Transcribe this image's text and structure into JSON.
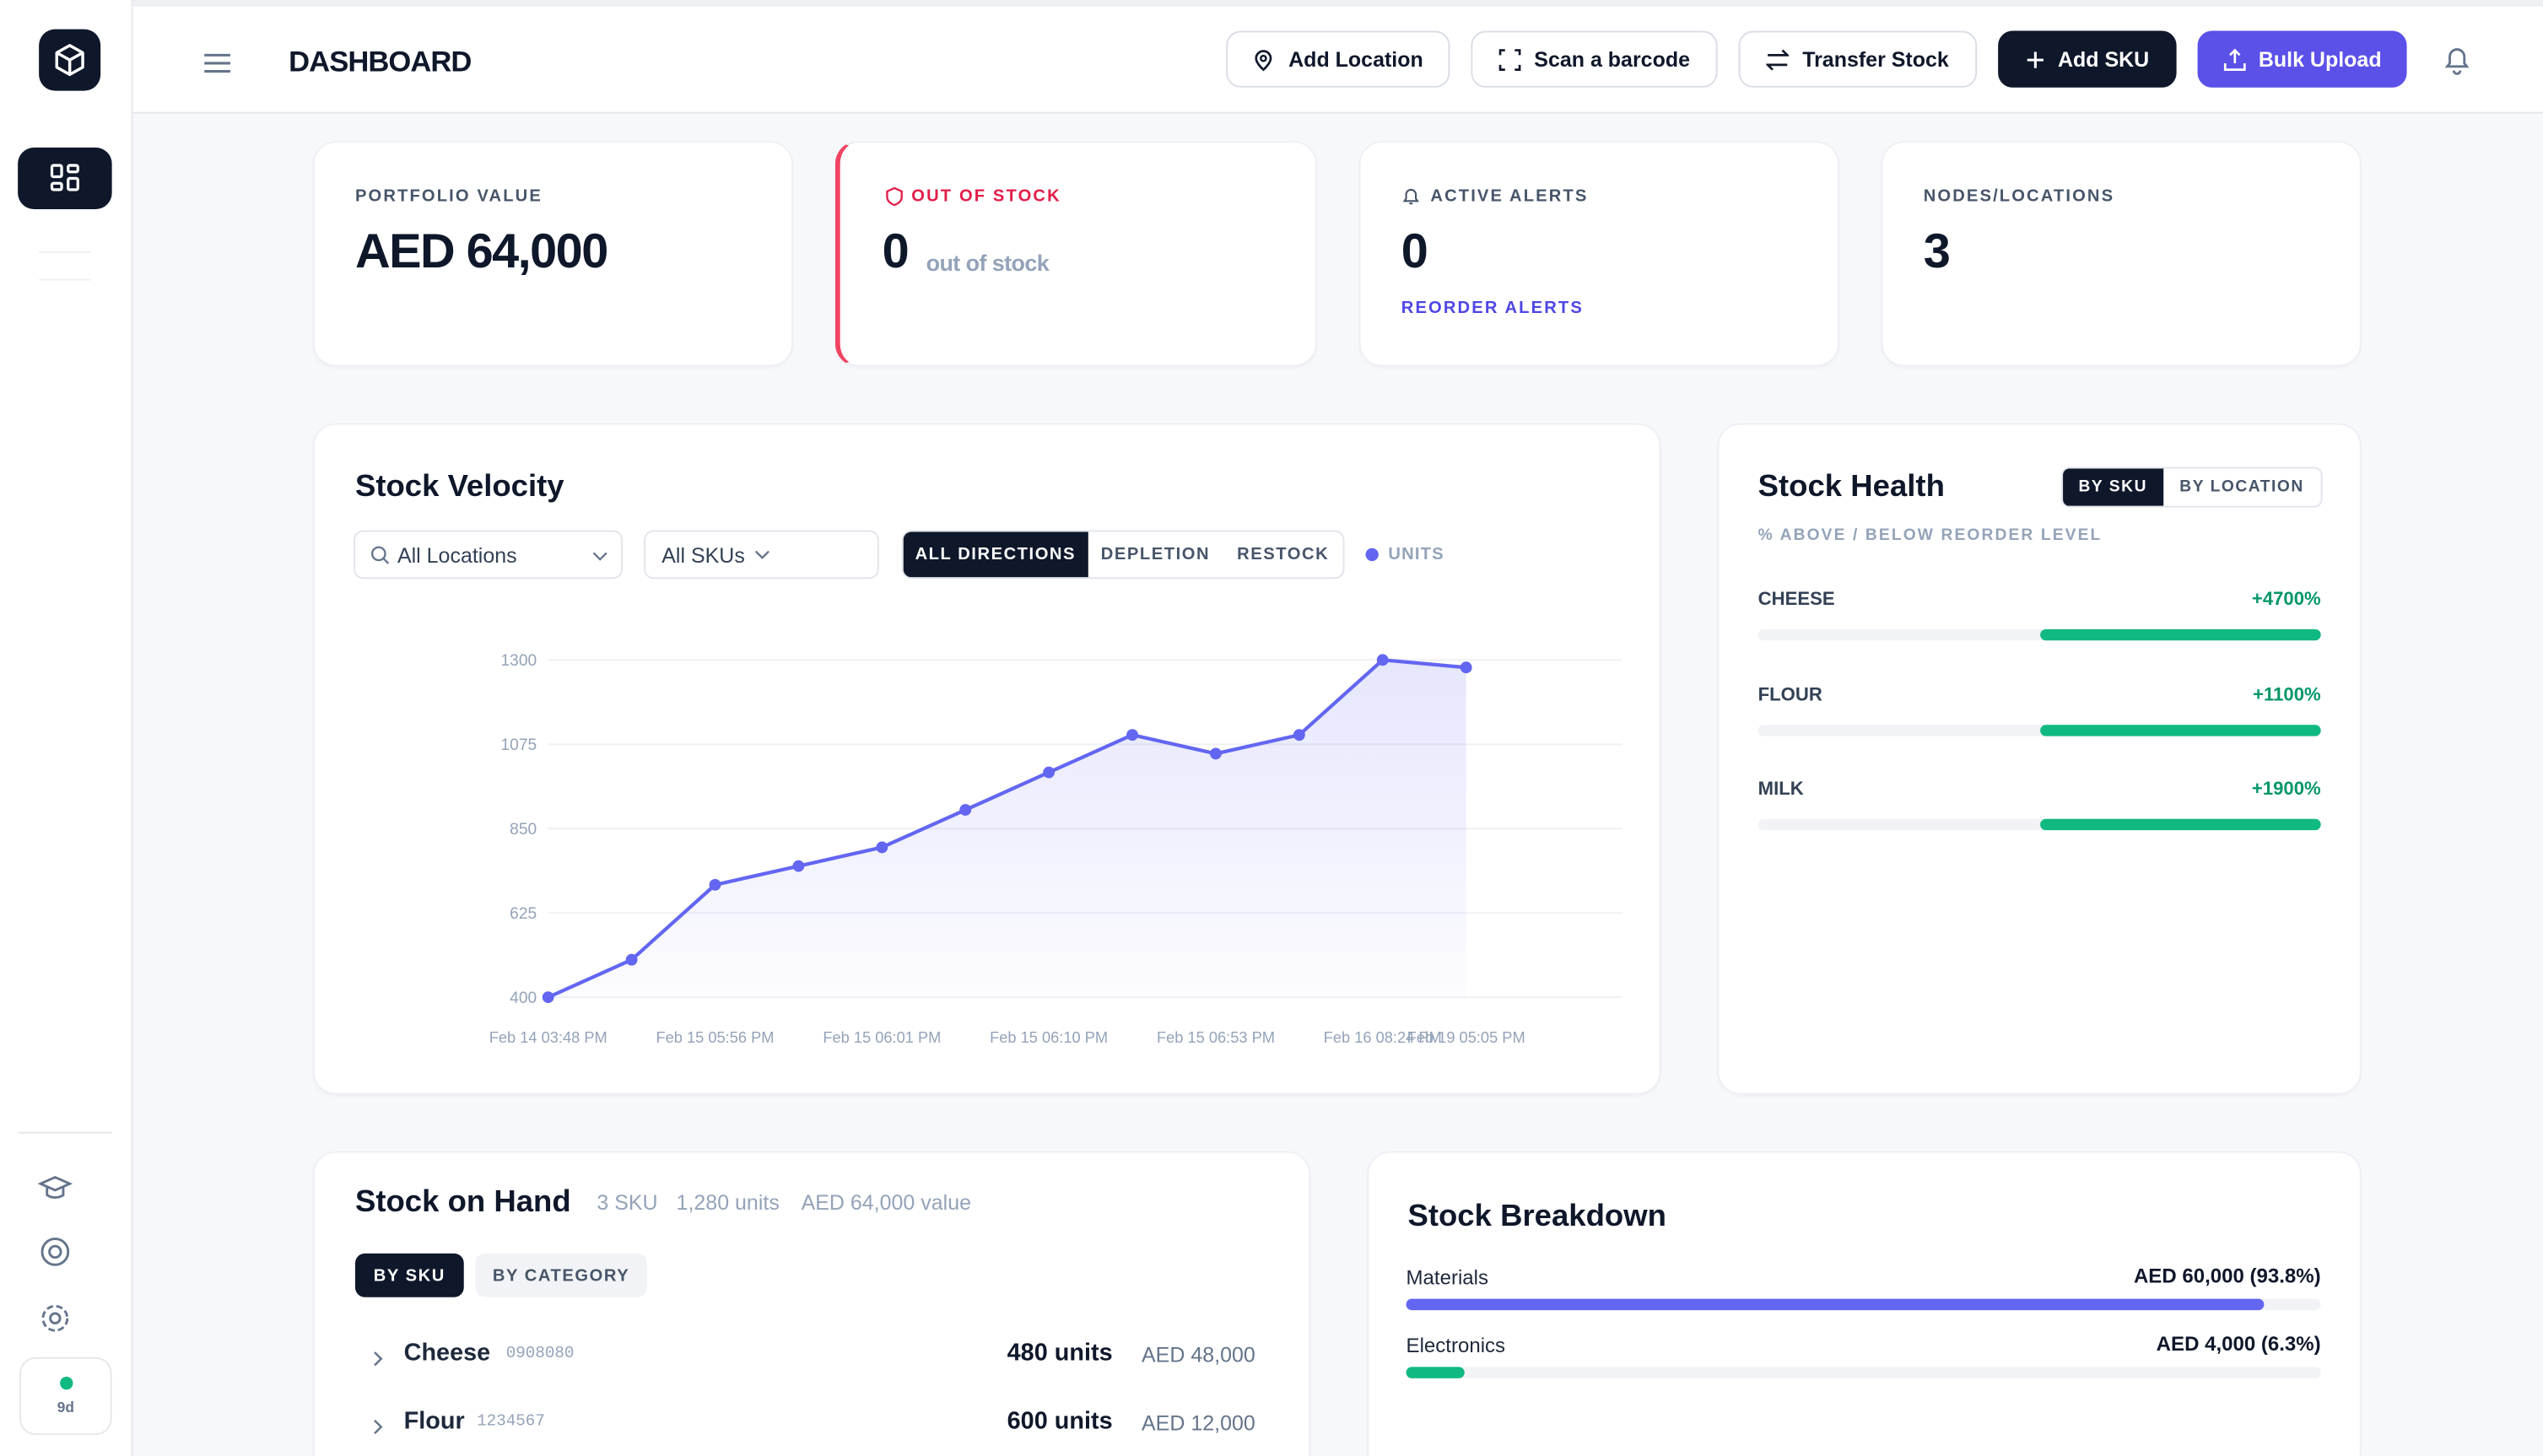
{
  "header": {
    "title": "DASHBOARD",
    "buttons": [
      "Add Location",
      "Scan a barcode",
      "Transfer Stock",
      "Add SKU",
      "Bulk Upload"
    ]
  },
  "sidebar": {
    "status": "9d"
  },
  "kpis": [
    {
      "label": "PORTFOLIO VALUE",
      "value": "AED 64,000"
    },
    {
      "label": "OUT OF STOCK",
      "value": "0",
      "note": "out of stock"
    },
    {
      "label": "ACTIVE ALERTS",
      "value": "0",
      "link": "REORDER ALERTS"
    },
    {
      "label": "NODES/LOCATIONS",
      "value": "3"
    }
  ],
  "stock_velocity": {
    "title": "Stock Velocity",
    "filters": [
      "All Locations",
      "All SKUs"
    ],
    "tabs": [
      "ALL DIRECTIONS",
      "DEPLETION",
      "RESTOCK"
    ]
  },
  "chart_data": {
    "type": "line",
    "categories": [
      "Feb 14 03:48 PM",
      null,
      "Feb 15 05:56 PM",
      null,
      "Feb 15 06:01 PM",
      null,
      "Feb 15 06:10 PM",
      null,
      "Feb 15 06:53 PM",
      null,
      "Feb 16 08:24 PM",
      "Feb 19 05:05 PM"
    ],
    "series": [
      {
        "name": "UNITS",
        "color": "#6366f1",
        "values": [
          400,
          500,
          700,
          750,
          800,
          900,
          1000,
          1100,
          1050,
          1100,
          1300,
          1280
        ]
      }
    ],
    "ylim": [
      400,
      1300
    ],
    "yticks": [
      400,
      625,
      850,
      1075,
      1300
    ],
    "grid": true
  },
  "stock_health": {
    "title": "Stock Health",
    "toggle": [
      "BY SKU",
      "BY LOCATION"
    ],
    "subtitle": "% ABOVE / BELOW REORDER LEVEL",
    "rows": [
      {
        "name": "CHEESE",
        "label": "+4700%"
      },
      {
        "name": "FLOUR",
        "label": "+1100%"
      },
      {
        "name": "MILK",
        "label": "+1900%"
      }
    ]
  },
  "stock_on_hand": {
    "title": "Stock on Hand",
    "summary": [
      "3 SKU",
      "1,280 units",
      "AED 64,000 value"
    ],
    "tabs": [
      "BY SKU",
      "BY CATEGORY"
    ],
    "rows": [
      {
        "name": "Cheese",
        "code": "0908080",
        "units": "480 units",
        "value": "AED 48,000"
      },
      {
        "name": "Flour",
        "code": "1234567",
        "units": "600 units",
        "value": "AED 12,000"
      }
    ]
  },
  "stock_breakdown": {
    "title": "Stock Breakdown",
    "rows": [
      {
        "name": "Materials",
        "label": "AED 60,000 (93.8%)",
        "share": 93.8,
        "color": "#6366f1"
      },
      {
        "name": "Electronics",
        "label": "AED 4,000 (6.3%)",
        "share": 6.3,
        "color": "#10b981"
      }
    ]
  }
}
